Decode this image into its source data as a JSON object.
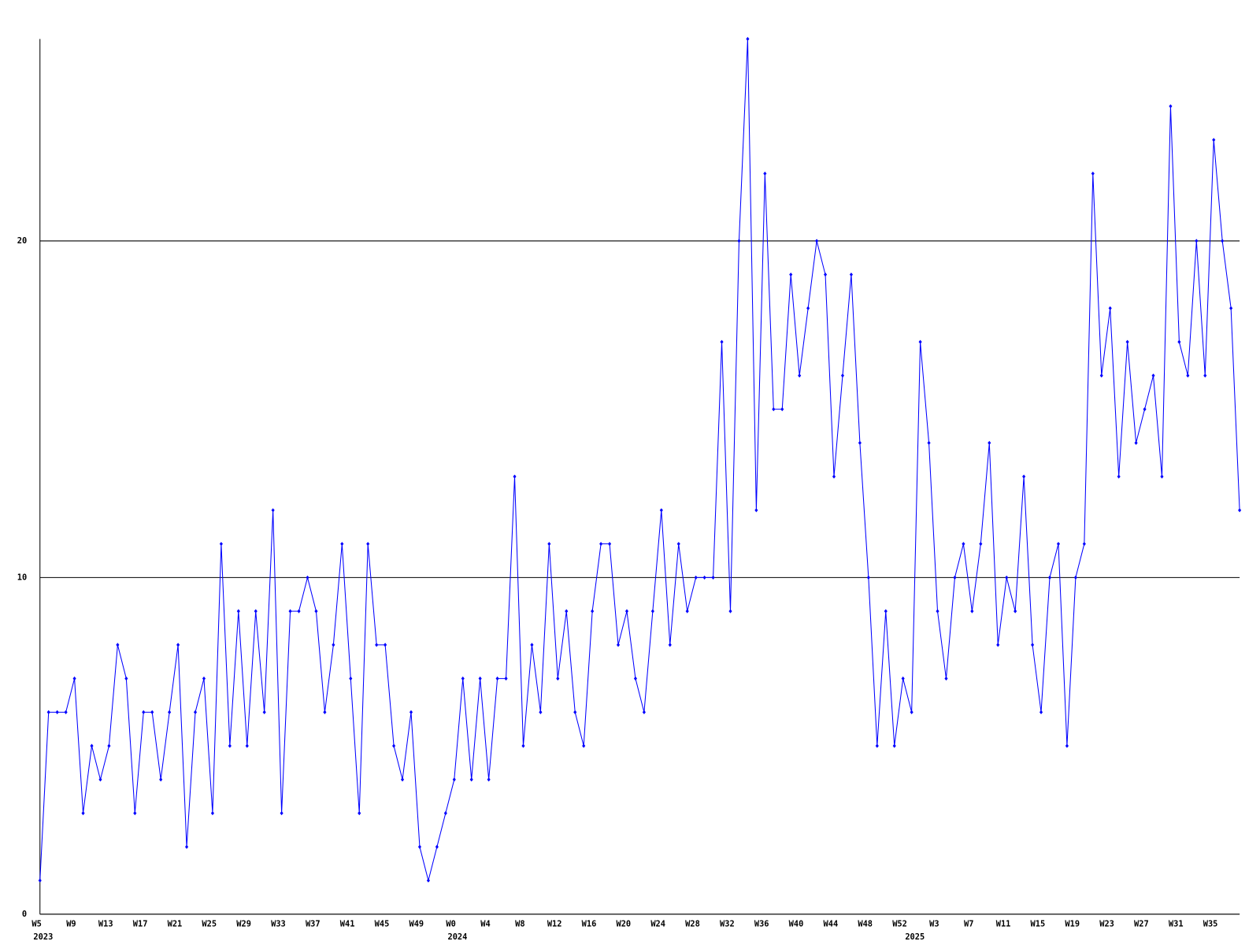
{
  "chart_data": {
    "type": "line",
    "categories": [
      "W5",
      null,
      null,
      null,
      "W9",
      null,
      null,
      null,
      "W13",
      null,
      null,
      null,
      "W17",
      null,
      null,
      null,
      "W21",
      null,
      null,
      null,
      "W25",
      null,
      null,
      null,
      "W29",
      null,
      null,
      null,
      "W33",
      null,
      null,
      null,
      "W37",
      null,
      null,
      null,
      "W41",
      null,
      null,
      null,
      "W45",
      null,
      null,
      null,
      "W49",
      null,
      null,
      null,
      "W0",
      null,
      null,
      null,
      "W4",
      null,
      null,
      null,
      "W8",
      null,
      null,
      null,
      "W12",
      null,
      null,
      null,
      "W16",
      null,
      null,
      null,
      "W20",
      null,
      null,
      null,
      "W24",
      null,
      null,
      null,
      "W28",
      null,
      null,
      null,
      "W32",
      null,
      null,
      null,
      "W36",
      null,
      null,
      null,
      "W40",
      null,
      null,
      null,
      "W44",
      null,
      null,
      null,
      "W48",
      null,
      null,
      null,
      "W52",
      null,
      null,
      null,
      "W3",
      null,
      null,
      null,
      "W7",
      null,
      null,
      null,
      "W11",
      null,
      null,
      null,
      "W15",
      null,
      null,
      null,
      "W19",
      null,
      null,
      null,
      "W23",
      null,
      null,
      null,
      "W27",
      null,
      null,
      null,
      "W31",
      null,
      null,
      null,
      "W35",
      null,
      null,
      null
    ],
    "category_years": [
      "2023",
      null,
      null,
      null,
      null,
      null,
      null,
      null,
      null,
      null,
      null,
      null,
      null,
      null,
      null,
      null,
      null,
      null,
      null,
      null,
      null,
      null,
      null,
      null,
      null,
      null,
      null,
      null,
      null,
      null,
      null,
      null,
      null,
      null,
      null,
      null,
      null,
      null,
      null,
      null,
      null,
      null,
      null,
      null,
      null,
      null,
      null,
      null,
      "2024",
      null,
      null,
      null,
      null,
      null,
      null,
      null,
      null,
      null,
      null,
      null,
      null,
      null,
      null,
      null,
      null,
      null,
      null,
      null,
      null,
      null,
      null,
      null,
      null,
      null,
      null,
      null,
      null,
      null,
      null,
      null,
      null,
      null,
      null,
      null,
      null,
      null,
      null,
      null,
      null,
      null,
      null,
      null,
      null,
      null,
      null,
      null,
      null,
      null,
      null,
      null,
      null,
      "2025",
      null,
      null,
      null,
      null,
      null,
      null,
      null,
      null,
      null,
      null,
      null,
      null,
      null,
      null,
      null,
      null,
      null,
      null,
      null,
      null,
      null,
      null,
      null,
      null,
      null,
      null,
      null,
      null,
      null,
      null,
      null,
      null,
      null,
      null,
      null,
      null,
      null
    ],
    "values": [
      1,
      6,
      6,
      6,
      7,
      3,
      5,
      4,
      5,
      8,
      7,
      3,
      6,
      6,
      4,
      6,
      8,
      2,
      6,
      7,
      3,
      11,
      5,
      9,
      5,
      9,
      6,
      12,
      3,
      9,
      9,
      10,
      9,
      6,
      8,
      11,
      7,
      3,
      11,
      8,
      8,
      5,
      4,
      6,
      2,
      1,
      2,
      3,
      4,
      7,
      4,
      7,
      4,
      7,
      7,
      13,
      5,
      8,
      6,
      11,
      7,
      9,
      6,
      5,
      9,
      11,
      11,
      8,
      9,
      7,
      6,
      9,
      12,
      8,
      11,
      9,
      10,
      10,
      10,
      17,
      9,
      20,
      26,
      12,
      22,
      15,
      15,
      19,
      16,
      18,
      20,
      19,
      13,
      16,
      19,
      14,
      10,
      5,
      9,
      5,
      7,
      6,
      17,
      14,
      9,
      7,
      10,
      11,
      9,
      11,
      14,
      8,
      10,
      9,
      13,
      8,
      6,
      10,
      11,
      5,
      10,
      11,
      22,
      16,
      18,
      13,
      17,
      14,
      15,
      16,
      13,
      24,
      17,
      16,
      20,
      16,
      23,
      20,
      18,
      12
    ],
    "color": "#0000ff",
    "ylim": [
      0,
      26
    ],
    "yticks": [
      0,
      10,
      20
    ],
    "grid": true
  }
}
